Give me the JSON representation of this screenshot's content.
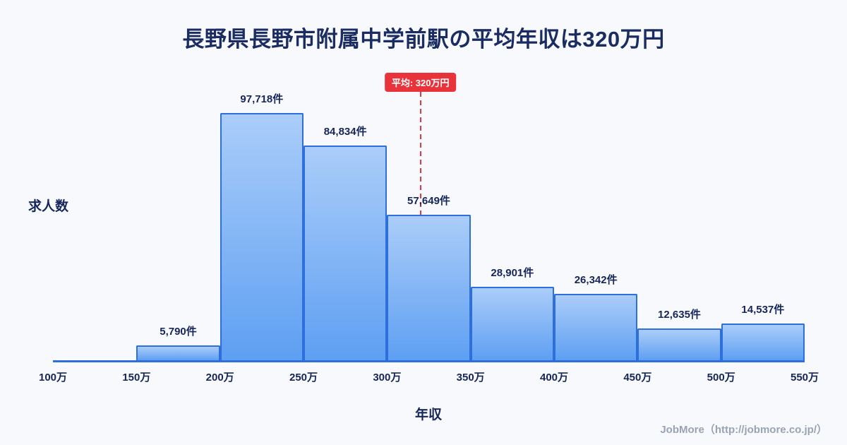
{
  "chart_data": {
    "type": "bar",
    "title": "長野県長野市附属中学前駅の平均年収は320万円",
    "xlabel": "年収",
    "ylabel": "求人数",
    "x_range": [
      100,
      550
    ],
    "x_ticks": [
      "100万",
      "150万",
      "200万",
      "250万",
      "300万",
      "350万",
      "400万",
      "450万",
      "500万",
      "550万"
    ],
    "bins": [
      {
        "x0": 100,
        "x1": 150,
        "value": 0,
        "label": ""
      },
      {
        "x0": 150,
        "x1": 200,
        "value": 5790,
        "label": "5,790件"
      },
      {
        "x0": 200,
        "x1": 250,
        "value": 97718,
        "label": "97,718件"
      },
      {
        "x0": 250,
        "x1": 300,
        "value": 84834,
        "label": "84,834件"
      },
      {
        "x0": 300,
        "x1": 350,
        "value": 57649,
        "label": "57,649件"
      },
      {
        "x0": 350,
        "x1": 400,
        "value": 28901,
        "label": "28,901件"
      },
      {
        "x0": 400,
        "x1": 450,
        "value": 26342,
        "label": "26,342件"
      },
      {
        "x0": 450,
        "x1": 500,
        "value": 12635,
        "label": "12,635件"
      },
      {
        "x0": 500,
        "x1": 550,
        "value": 14537,
        "label": "14,537件"
      }
    ],
    "average": {
      "x": 320,
      "label": "平均: 320万円"
    },
    "legend": "none",
    "grid": "off",
    "colors": {
      "bar_top": "#abcdf9",
      "bar_bottom": "#5e9ff2",
      "bar_border": "#2e6fde",
      "avg_line": "#e8373d",
      "avg_badge_bg": "#e8333b",
      "text": "#16265a",
      "title_text": "#1b2c63",
      "background": "#f7f9fd"
    }
  },
  "footer": {
    "credit": "JobMore（http://jobmore.co.jp/）"
  }
}
